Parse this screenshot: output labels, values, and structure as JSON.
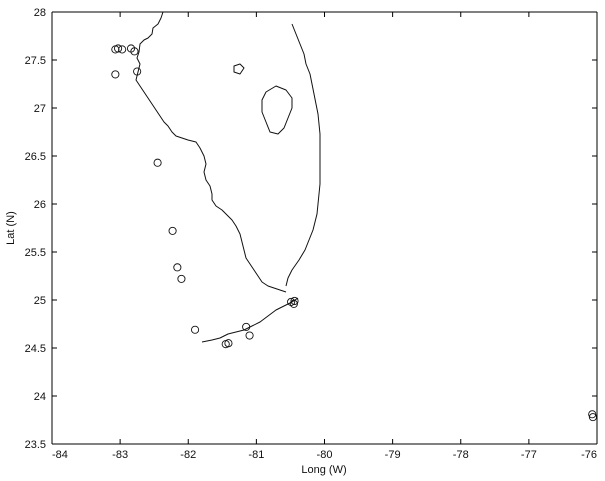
{
  "chart_data": {
    "type": "scatter",
    "title": "",
    "xlabel": "Long (W)",
    "ylabel": "Lat (N)",
    "xlim": [
      -84,
      -76
    ],
    "ylim": [
      23.5,
      28
    ],
    "xticks": [
      "-84",
      "-83",
      "-82",
      "-81",
      "-80",
      "-79",
      "-78",
      "-77",
      "-76"
    ],
    "yticks": [
      "23.5",
      "24",
      "24.5",
      "25",
      "25.5",
      "26",
      "26.5",
      "27",
      "27.5",
      "28"
    ],
    "grid": false,
    "legend": "none",
    "marker": "open-circle",
    "colors": {
      "marker": "#111111",
      "coast": "#111111",
      "axis": "#000000"
    },
    "series": [
      {
        "points": [
          [
            -83.07,
            27.61
          ],
          [
            -83.03,
            27.62
          ],
          [
            -82.97,
            27.61
          ],
          [
            -82.84,
            27.62
          ],
          [
            -82.79,
            27.59
          ],
          [
            -83.07,
            27.35
          ],
          [
            -82.75,
            27.38
          ],
          [
            -82.45,
            26.43
          ],
          [
            -82.23,
            25.72
          ],
          [
            -82.16,
            25.34
          ],
          [
            -82.1,
            25.22
          ],
          [
            -81.9,
            24.69
          ],
          [
            -81.45,
            24.54
          ],
          [
            -81.41,
            24.55
          ],
          [
            -81.15,
            24.72
          ],
          [
            -81.1,
            24.63
          ],
          [
            -80.49,
            24.98
          ],
          [
            -80.45,
            24.96
          ],
          [
            -80.44,
            24.99
          ],
          [
            -76.07,
            23.81
          ],
          [
            -76.06,
            23.78
          ]
        ]
      }
    ]
  }
}
